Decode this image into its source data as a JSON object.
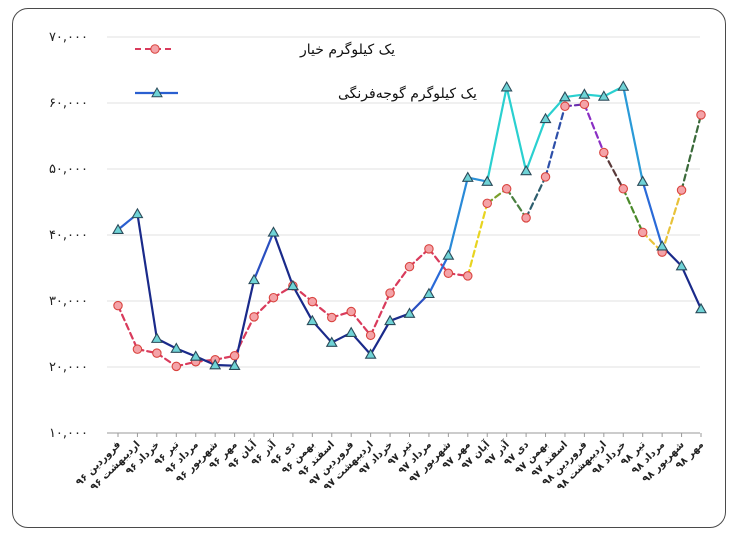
{
  "chart_data": {
    "type": "line",
    "title": "",
    "xlabel": "",
    "ylabel": "",
    "ylim": [
      10000,
      70000
    ],
    "yticks": [
      10000,
      20000,
      30000,
      40000,
      50000,
      60000,
      70000
    ],
    "ytick_labels": [
      "۱۰,۰۰۰",
      "۲۰,۰۰۰",
      "۳۰,۰۰۰",
      "۴۰,۰۰۰",
      "۵۰,۰۰۰",
      "۶۰,۰۰۰",
      "۷۰,۰۰۰"
    ],
    "grid": {
      "horizontal": true,
      "vertical": false
    },
    "legend_position": "top-left",
    "categories": [
      "فروردین ۹۶",
      "اردیبهشت ۹۶",
      "خرداد ۹۶",
      "تیر ۹۶",
      "مرداد ۹۶",
      "شهریور ۹۶",
      "مهر ۹۶",
      "آبان ۹۶",
      "آذر ۹۶",
      "دی ۹۶",
      "بهمن ۹۶",
      "اسفند ۹۶",
      "فروردین ۹۷",
      "اردیبهشت ۹۷",
      "خرداد ۹۷",
      "تیر ۹۷",
      "مرداد ۹۷",
      "شهریور ۹۷",
      "مهر ۹۷",
      "آبان ۹۷",
      "آذر ۹۷",
      "دی ۹۷",
      "بهمن ۹۷",
      "اسفند ۹۷",
      "فروردین ۹۸",
      "اردیبهشت ۹۸",
      "خرداد ۹۸",
      "تیر ۹۸",
      "مرداد ۹۸",
      "شهریور ۹۸",
      "مهر ۹۸"
    ],
    "series": [
      {
        "name": "یک کیلوگرم خیار",
        "style": "dashed",
        "marker": "circle",
        "marker_fill": "#f4a3a8",
        "marker_stroke": "#d9443f",
        "values": [
          29300,
          22700,
          22100,
          20100,
          20800,
          21100,
          21700,
          27600,
          30500,
          32300,
          29900,
          27500,
          28400,
          24800,
          31200,
          35200,
          37900,
          34200,
          33800,
          44800,
          47000,
          42600,
          48800,
          59500,
          59800,
          52500,
          47000,
          40400,
          37400,
          46800,
          58200
        ],
        "segment_colors": [
          "#d93b5c",
          "#d93b5c",
          "#d93b5c",
          "#d93b5c",
          "#d93b5c",
          "#d93b5c",
          "#d93b5c",
          "#d93b5c",
          "#d93b5c",
          "#d93b5c",
          "#d93b5c",
          "#d93b5c",
          "#d93b5c",
          "#d93b5c",
          "#d93b5c",
          "#d93b5c",
          "#d93b5c",
          "#d93b5c",
          "#e8d420",
          "#7aa02a",
          "#4a8040",
          "#2d5e6e",
          "#2d4fa8",
          "#6a2fb0",
          "#8a2fc4",
          "#5a3a3a",
          "#4a8a2a",
          "#e8c23a",
          "#e8c23a",
          "#3a6a3a"
        ]
      },
      {
        "name": "یک کیلوگرم گوجه‌فرنگی",
        "style": "solid",
        "marker": "triangle",
        "marker_fill": "#6fd3d6",
        "marker_stroke": "#2b4b5a",
        "values": [
          40800,
          43200,
          24300,
          22800,
          21600,
          20300,
          20200,
          33200,
          40400,
          32300,
          27000,
          23700,
          25200,
          21900,
          27000,
          28100,
          31100,
          36900,
          48700,
          48100,
          62400,
          49700,
          57600,
          60900,
          61300,
          61000,
          62500,
          48100,
          38300,
          35300,
          28800
        ],
        "segment_colors": [
          "#2a5fd0",
          "#1a2a8a",
          "#1a2a8a",
          "#1a2a8a",
          "#1a2a8a",
          "#1a2a8a",
          "#1a2a8a",
          "#2a4fc0",
          "#1a2a8a",
          "#1a2a8a",
          "#1a2a8a",
          "#1a2a8a",
          "#1a2a8a",
          "#1a2a8a",
          "#1a2a8a",
          "#2a4fc0",
          "#2a6ad8",
          "#2a8ad8",
          "#2a90d8",
          "#2ad0d0",
          "#2ad0d0",
          "#2ad0d0",
          "#2ad0d0",
          "#2ad0d0",
          "#2ad0d0",
          "#2ad0d0",
          "#2a9ad8",
          "#2a6ad8",
          "#1a2a8a",
          "#1a2a8a"
        ]
      }
    ]
  }
}
